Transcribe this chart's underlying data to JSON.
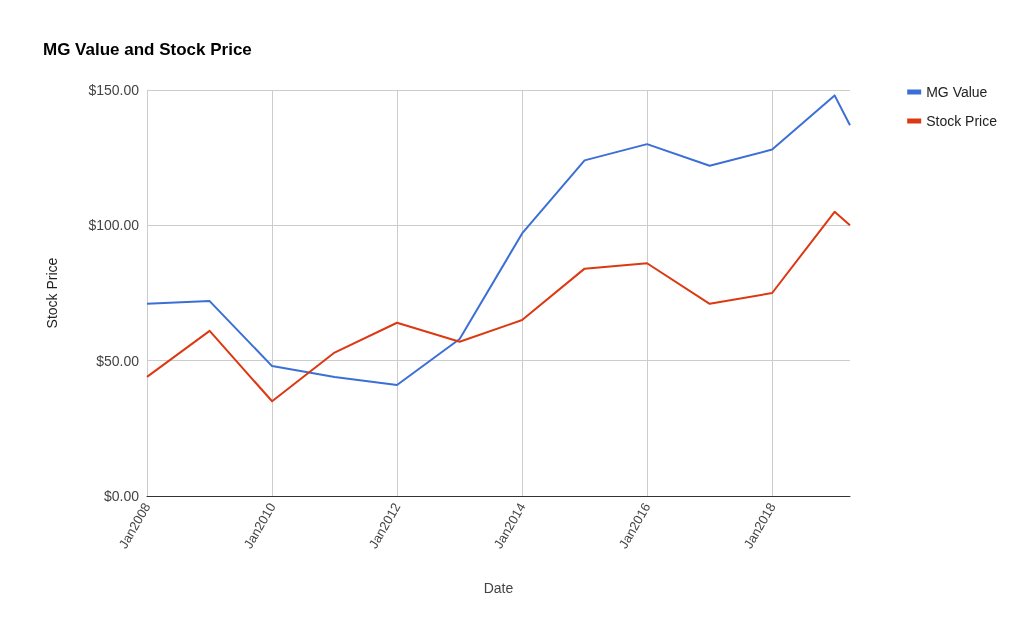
{
  "chart_data": {
    "type": "line",
    "title": "MG Value and Stock Price",
    "xlabel": "Date",
    "ylabel": "Stock Price",
    "x": [
      "2008-01",
      "2009-01",
      "2010-01",
      "2011-01",
      "2012-01",
      "2013-01",
      "2014-01",
      "2015-01",
      "2016-01",
      "2017-01",
      "2018-01",
      "2019-01",
      "2019-04"
    ],
    "series": [
      {
        "name": "MG Value",
        "color": "#3c6fd6",
        "values": [
          71,
          72,
          48,
          44,
          41,
          58,
          97,
          124,
          130,
          122,
          128,
          148,
          137
        ]
      },
      {
        "name": "Stock Price",
        "color": "#dc3912",
        "values": [
          44,
          61,
          35,
          53,
          64,
          57,
          65,
          84,
          86,
          71,
          75,
          105,
          100
        ]
      }
    ],
    "xlim": [
      "2008-01",
      "2019-04"
    ],
    "xticks": [
      {
        "value": "2008-01",
        "label": "Jan2008"
      },
      {
        "value": "2010-01",
        "label": "Jan2010"
      },
      {
        "value": "2012-01",
        "label": "Jan2012"
      },
      {
        "value": "2014-01",
        "label": "Jan2014"
      },
      {
        "value": "2016-01",
        "label": "Jan2016"
      },
      {
        "value": "2018-01",
        "label": "Jan2018"
      }
    ],
    "ylim": [
      0,
      150
    ],
    "yticks": [
      {
        "value": 0,
        "label": "$0.00"
      },
      {
        "value": 50,
        "label": "$50.00"
      },
      {
        "value": 100,
        "label": "$100.00"
      },
      {
        "value": 150,
        "label": "$150.00"
      }
    ],
    "grid": true,
    "legend": "top right",
    "marker": "none",
    "line_style": "solid"
  }
}
